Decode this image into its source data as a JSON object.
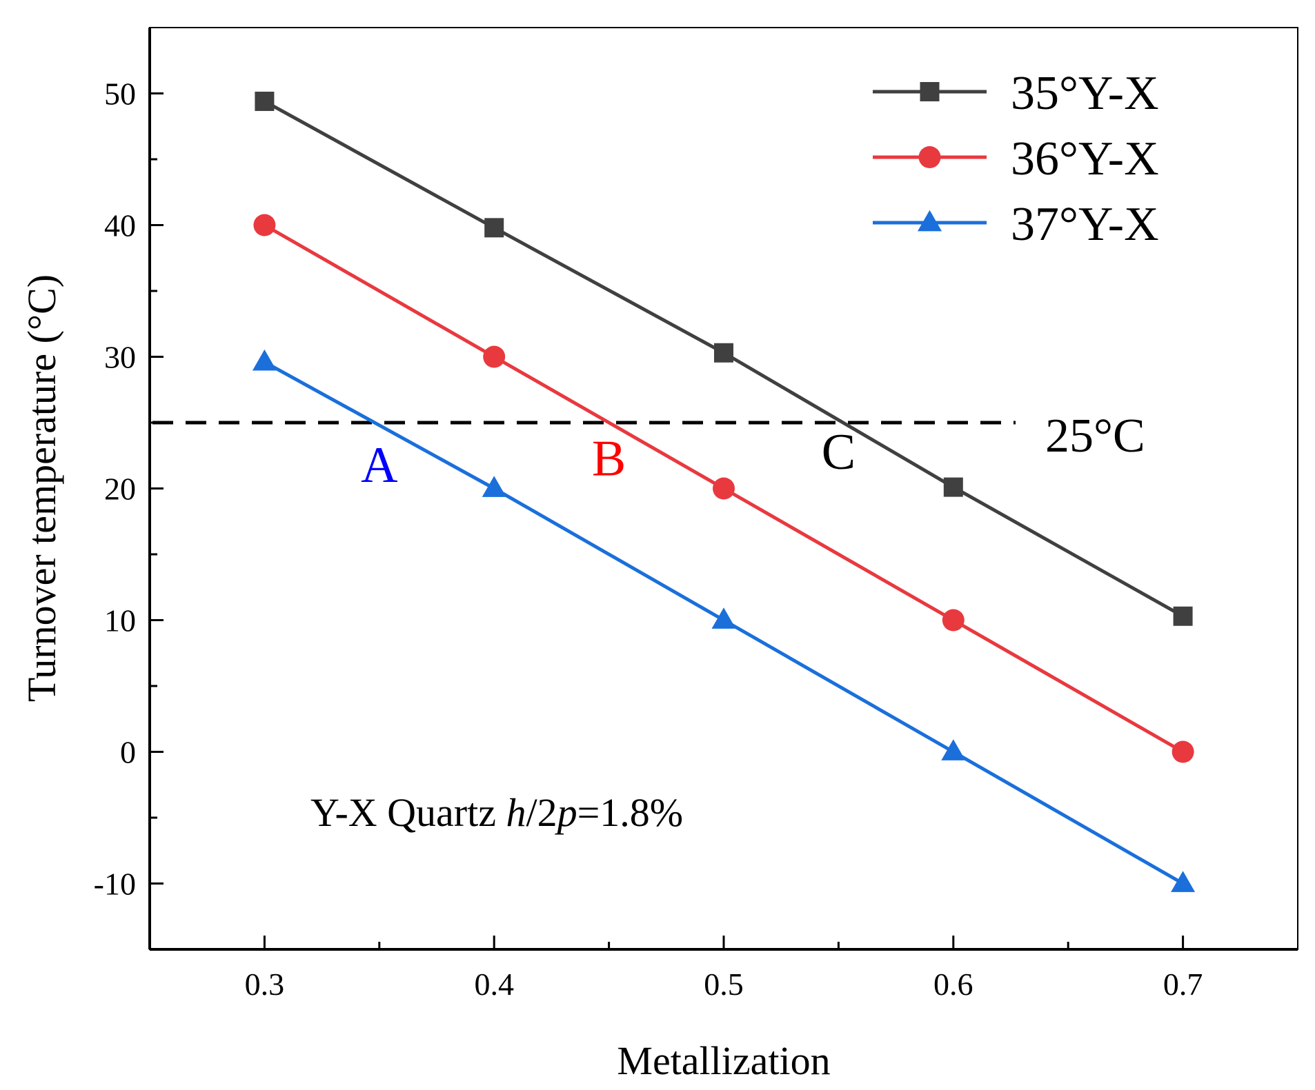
{
  "chart_data": {
    "type": "line",
    "title": "",
    "xlabel": "Metallization",
    "ylabel": "Turnover temperature (°C)",
    "xlim": [
      0.25,
      0.75
    ],
    "ylim": [
      -15,
      55
    ],
    "grid": false,
    "x": [
      0.3,
      0.4,
      0.5,
      0.6,
      0.7
    ],
    "x_ticks": [
      0.3,
      0.4,
      0.5,
      0.6,
      0.7
    ],
    "x_tick_labels": [
      "0.3",
      "0.4",
      "0.5",
      "0.6",
      "0.7"
    ],
    "y_ticks": [
      -10,
      0,
      10,
      20,
      30,
      40,
      50
    ],
    "y_tick_labels": [
      "-10",
      "0",
      "10",
      "20",
      "30",
      "40",
      "50"
    ],
    "legend_position": "top-right",
    "series": [
      {
        "name": "35°Y-X",
        "color": "#404040",
        "marker": "square",
        "values": [
          49.4,
          39.8,
          30.3,
          20.1,
          10.3
        ]
      },
      {
        "name": "36°Y-X",
        "color": "#e8393f",
        "marker": "circle",
        "values": [
          40,
          30,
          20,
          10,
          0
        ]
      },
      {
        "name": "37°Y-X",
        "color": "#1a6fdb",
        "marker": "triangle",
        "values": [
          29.6,
          20,
          10,
          0,
          -10
        ]
      }
    ],
    "reference_line": {
      "y": 25,
      "label": "25°C",
      "style": "dashed",
      "color": "#000000"
    },
    "annotations": [
      {
        "text": "A",
        "x": 0.35,
        "y": 20.5,
        "color": "#0000ff"
      },
      {
        "text": "B",
        "x": 0.45,
        "y": 21.0,
        "color": "#ff0000"
      },
      {
        "text": "C",
        "x": 0.55,
        "y": 21.5,
        "color": "#000000"
      }
    ],
    "note": {
      "prefix": "Y-X Quartz ",
      "h": "h",
      "slash": "/2",
      "p": "p",
      "suffix": "=1.8%"
    }
  }
}
